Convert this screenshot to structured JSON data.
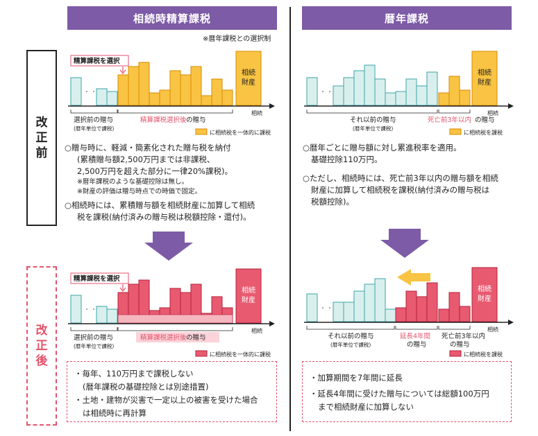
{
  "left": {
    "header": "相続時精算課税",
    "note": "※暦年課税との選択制",
    "before_chart": {
      "select_label": "精算課税を選択",
      "estate_line1": "相続",
      "estate_line2": "財産",
      "axis_label": "相続",
      "caption_prev_1": "選択前の贈与",
      "caption_prev_2": "(暦年単位で課税)",
      "caption_after_pre": "精算課税選択後",
      "caption_after_post": "の贈与",
      "legend": "に相続税を一体的に課税"
    },
    "before_text": {
      "p1": "○贈与時に、軽減・簡素化された贈与税を納付",
      "p1a": "(累積贈与額2,500万円までは非課税、",
      "p1b": "2,500万円を超えた部分に一律20%課税)。",
      "p1n1": "※暦年課税のような基礎控除は無し。",
      "p1n2": "※財産の評価は贈与時点での時価で固定。",
      "p2": "○相続時には、累積贈与額を相続財産に加算して相続",
      "p2b": "税を課税(納付済みの贈与税は税額控除・還付)。"
    },
    "after_chart": {
      "select_label": "精算課税を選択",
      "estate_line1": "相続",
      "estate_line2": "財産",
      "axis_label": "相続",
      "caption_prev_1": "選択前の贈与",
      "caption_prev_2": "(暦年単位で課税)",
      "caption_after_pre": "精算課税選択後",
      "caption_after_post": "の贈与",
      "legend": "に相続税を一体的に課税"
    },
    "after_box": {
      "b1": "・毎年、110万円まで課税しない",
      "b1b": "(暦年課税の基礎控除とは別途措置)",
      "b2": "・土地・建物が災害で一定以上の被害を受けた場合",
      "b2b": "は相続時に再計算"
    }
  },
  "right": {
    "header": "暦年課税",
    "before_chart": {
      "estate_line1": "相続",
      "estate_line2": "財産",
      "axis_label": "相続",
      "caption_prev_1": "それ以前の贈与",
      "caption_prev_2": "(暦年単位で課税)",
      "caption_3y_pre": "死亡前3年以内",
      "caption_3y_post": "の贈与",
      "legend": "に相続税を課税"
    },
    "before_text": {
      "p1": "○暦年ごとに贈与額に対し累進税率を適用。",
      "p1b": "基礎控除110万円。",
      "p2": "○ただし、相続時には、死亡前3年以内の贈与額を相続",
      "p2b": "財産に加算して相続税を課税(納付済みの贈与税は",
      "p2c": "税額控除)。"
    },
    "after_chart": {
      "estate_line1": "相続",
      "estate_line2": "財産",
      "axis_label": "相続",
      "caption_prev_1": "それ以前の贈与",
      "caption_prev_2": "(暦年単位で課税)",
      "caption_ext_1": "延長4年間",
      "caption_ext_2": "の贈与",
      "caption_3y_1": "死亡前3年以内",
      "caption_3y_2": "の贈与",
      "legend": "に相続税を課税"
    },
    "after_box": {
      "b1": "・加算期間を7年間に延長",
      "b2": "・延長4年間に受けた贈与については総額100万円",
      "b2b": "まで相続財産に加算しない"
    }
  },
  "side": {
    "before": [
      "改",
      "正",
      "前"
    ],
    "after": [
      "改",
      "正",
      "後"
    ]
  },
  "colors": {
    "purple": "#7d5ba6",
    "teal_fill": "#d9efed",
    "teal_stroke": "#3aa6a8",
    "orange_fill": "#f9c443",
    "orange_stroke": "#d98a00",
    "pink_fill": "#e85a70",
    "pink_stroke": "#b3203a",
    "red_text": "#e4536b"
  }
}
